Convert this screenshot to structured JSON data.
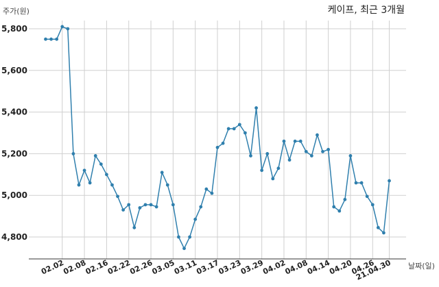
{
  "chart_data": {
    "type": "line",
    "title": "케이프, 최근 3개월",
    "ylabel": "주가(원)",
    "xlabel": "날짜(일)",
    "ylim": [
      4700,
      5860
    ],
    "yticks": [
      4800,
      5000,
      5200,
      5400,
      5600,
      5800
    ],
    "ytick_labels": [
      "4,800",
      "5,000",
      "5,200",
      "5,400",
      "5,600",
      "5,800"
    ],
    "xtick_labels": [
      "02.02",
      "02.08",
      "02.16",
      "02.22",
      "02.26",
      "03.05",
      "03.11",
      "03.17",
      "03.23",
      "03.29",
      "04.02",
      "04.08",
      "04.14",
      "04.20",
      "04.26",
      "21.04.30"
    ],
    "xtick_indices": [
      3,
      7,
      11,
      15,
      19,
      23,
      27,
      31,
      35,
      39,
      43,
      47,
      51,
      55,
      59,
      62
    ],
    "grid": true,
    "line_color": "#2f7fad",
    "series": [
      {
        "values": [
          5750,
          5750,
          5750,
          5810,
          5800,
          5200,
          5050,
          5120,
          5060,
          5190,
          5150,
          5100,
          5050,
          4995,
          4930,
          4955,
          4845,
          4940,
          4955,
          4955,
          4945,
          5110,
          5050,
          4955,
          4800,
          4745,
          4800,
          4885,
          4945,
          5030,
          5010,
          5230,
          5250,
          5320,
          5320,
          5340,
          5300,
          5190,
          5420,
          5120,
          5200,
          5080,
          5130,
          5260,
          5170,
          5260,
          5260,
          5210,
          5190,
          5290,
          5210,
          5220,
          4945,
          4925,
          4980,
          5190,
          5060,
          5060,
          4995,
          4955,
          4845,
          4820,
          5070
        ]
      }
    ]
  }
}
